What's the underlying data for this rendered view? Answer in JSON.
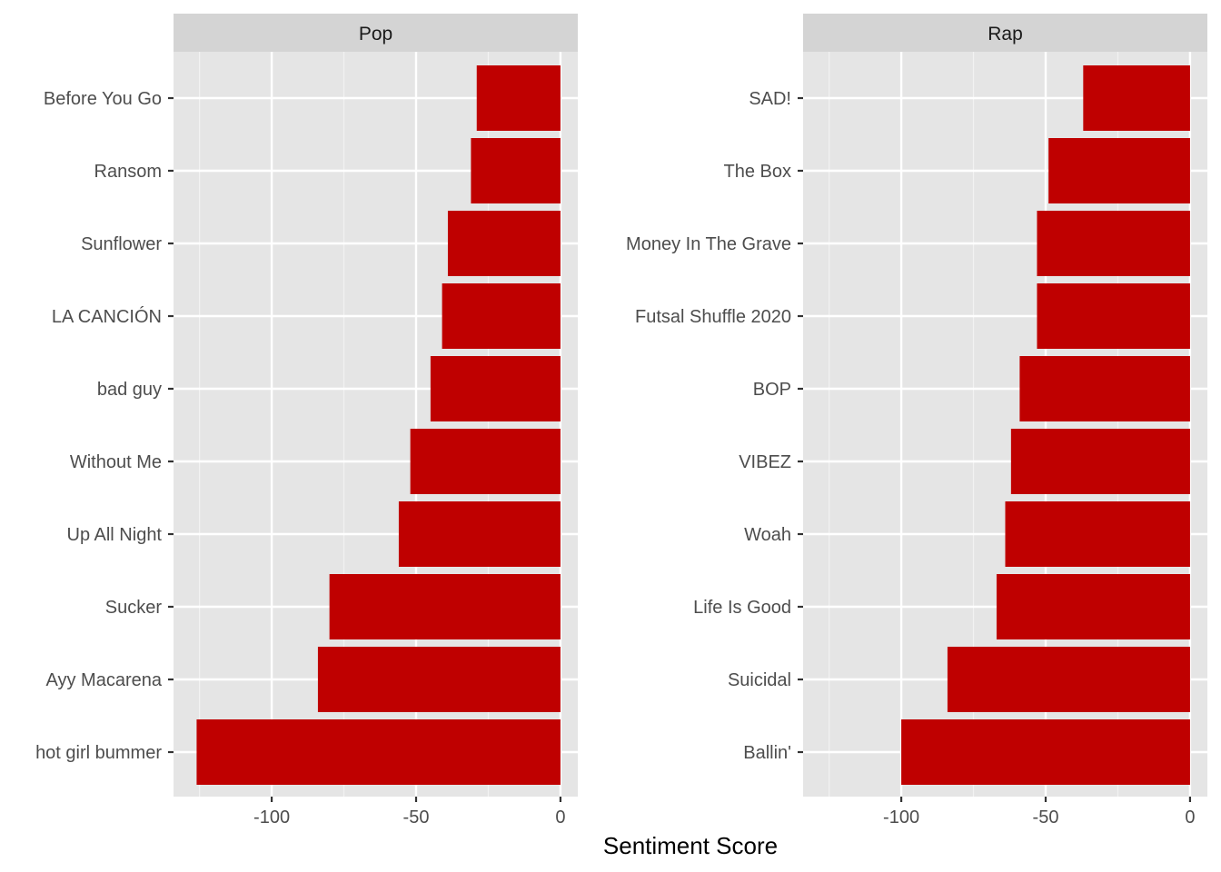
{
  "chart_data": {
    "type": "bar",
    "orientation": "horizontal",
    "facet_layout": "side-by-side, free y scales",
    "xlabel": "Sentiment Score",
    "xlim": [
      -134,
      6
    ],
    "x_ticks": [
      -100,
      -50,
      0
    ],
    "x_tick_labels": [
      "-100",
      "-50",
      "0"
    ],
    "grid": true,
    "bar_color": "#BF0000",
    "panel_background": "#E5E5E5",
    "strip_background": "#D4D4D4",
    "panels": [
      {
        "strip": "Pop",
        "categories": [
          "Before You Go",
          "Ransom",
          "Sunflower",
          "LA CANCIÓN",
          "bad guy",
          "Without Me",
          "Up All Night",
          "Sucker",
          "Ayy Macarena",
          "hot girl bummer"
        ],
        "values": [
          -29,
          -31,
          -39,
          -41,
          -45,
          -52,
          -56,
          -80,
          -84,
          -126
        ]
      },
      {
        "strip": "Rap",
        "categories": [
          "SAD!",
          "The Box",
          "Money In The Grave ",
          "Futsal Shuffle 2020",
          "BOP",
          "VIBEZ",
          "Woah",
          "Life Is Good ",
          "Suicidal",
          "Ballin' "
        ],
        "values": [
          -37,
          -49,
          -53,
          -53,
          -59,
          -62,
          -64,
          -67,
          -84,
          -100
        ]
      }
    ]
  }
}
